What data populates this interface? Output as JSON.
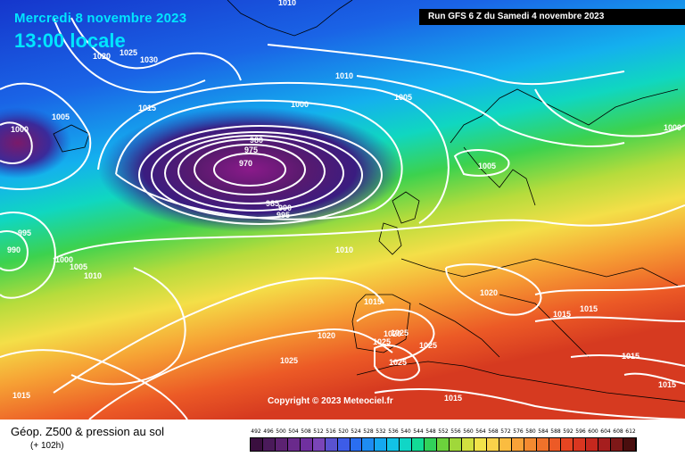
{
  "map": {
    "date": "Mercredi 8 novembre 2023",
    "time": "13:00 locale",
    "run": "Run GFS 6 Z du Samedi 4 novembre 2023",
    "copyright": "Copyright © 2023 Meteociel.fr",
    "isobar_labels": [
      "1010",
      "1020",
      "1025",
      "1030",
      "1015",
      "1005",
      "1000",
      "1010",
      "1005",
      "1000",
      "980",
      "975",
      "970",
      "985",
      "990",
      "995",
      "1005",
      "1000",
      "995",
      "990",
      "1000",
      "1005",
      "1010",
      "1010",
      "1015",
      "1020",
      "1020",
      "1015",
      "1015",
      "1025",
      "1025",
      "1025",
      "1025",
      "1020",
      "1025",
      "1015",
      "1015",
      "1015",
      "1015"
    ]
  },
  "legend": {
    "title": "Géop. Z500 & pression au sol",
    "subtitle": "(+ 102h)",
    "scale_values": [
      "492",
      "496",
      "500",
      "504",
      "508",
      "512",
      "516",
      "520",
      "524",
      "528",
      "532",
      "536",
      "540",
      "544",
      "548",
      "552",
      "556",
      "560",
      "564",
      "568",
      "572",
      "576",
      "580",
      "584",
      "588",
      "592",
      "596",
      "600",
      "604",
      "608",
      "612"
    ],
    "scale_colors": [
      "#3a0f3f",
      "#4a1a5a",
      "#5c2272",
      "#6a2a8c",
      "#7030a0",
      "#7a45b8",
      "#5a52d0",
      "#3d5ce8",
      "#2a6ef0",
      "#1e8cf2",
      "#15a8f0",
      "#12c2e6",
      "#10d6c6",
      "#12dc96",
      "#32d25a",
      "#6cd23c",
      "#a0d83a",
      "#d2e040",
      "#f2e24a",
      "#fad24a",
      "#fabc40",
      "#f8a238",
      "#f48a30",
      "#f0722a",
      "#ec5a26",
      "#e64522",
      "#da3620",
      "#c6281e",
      "#a61e1e",
      "#7e1818",
      "#4a0e0e"
    ]
  }
}
